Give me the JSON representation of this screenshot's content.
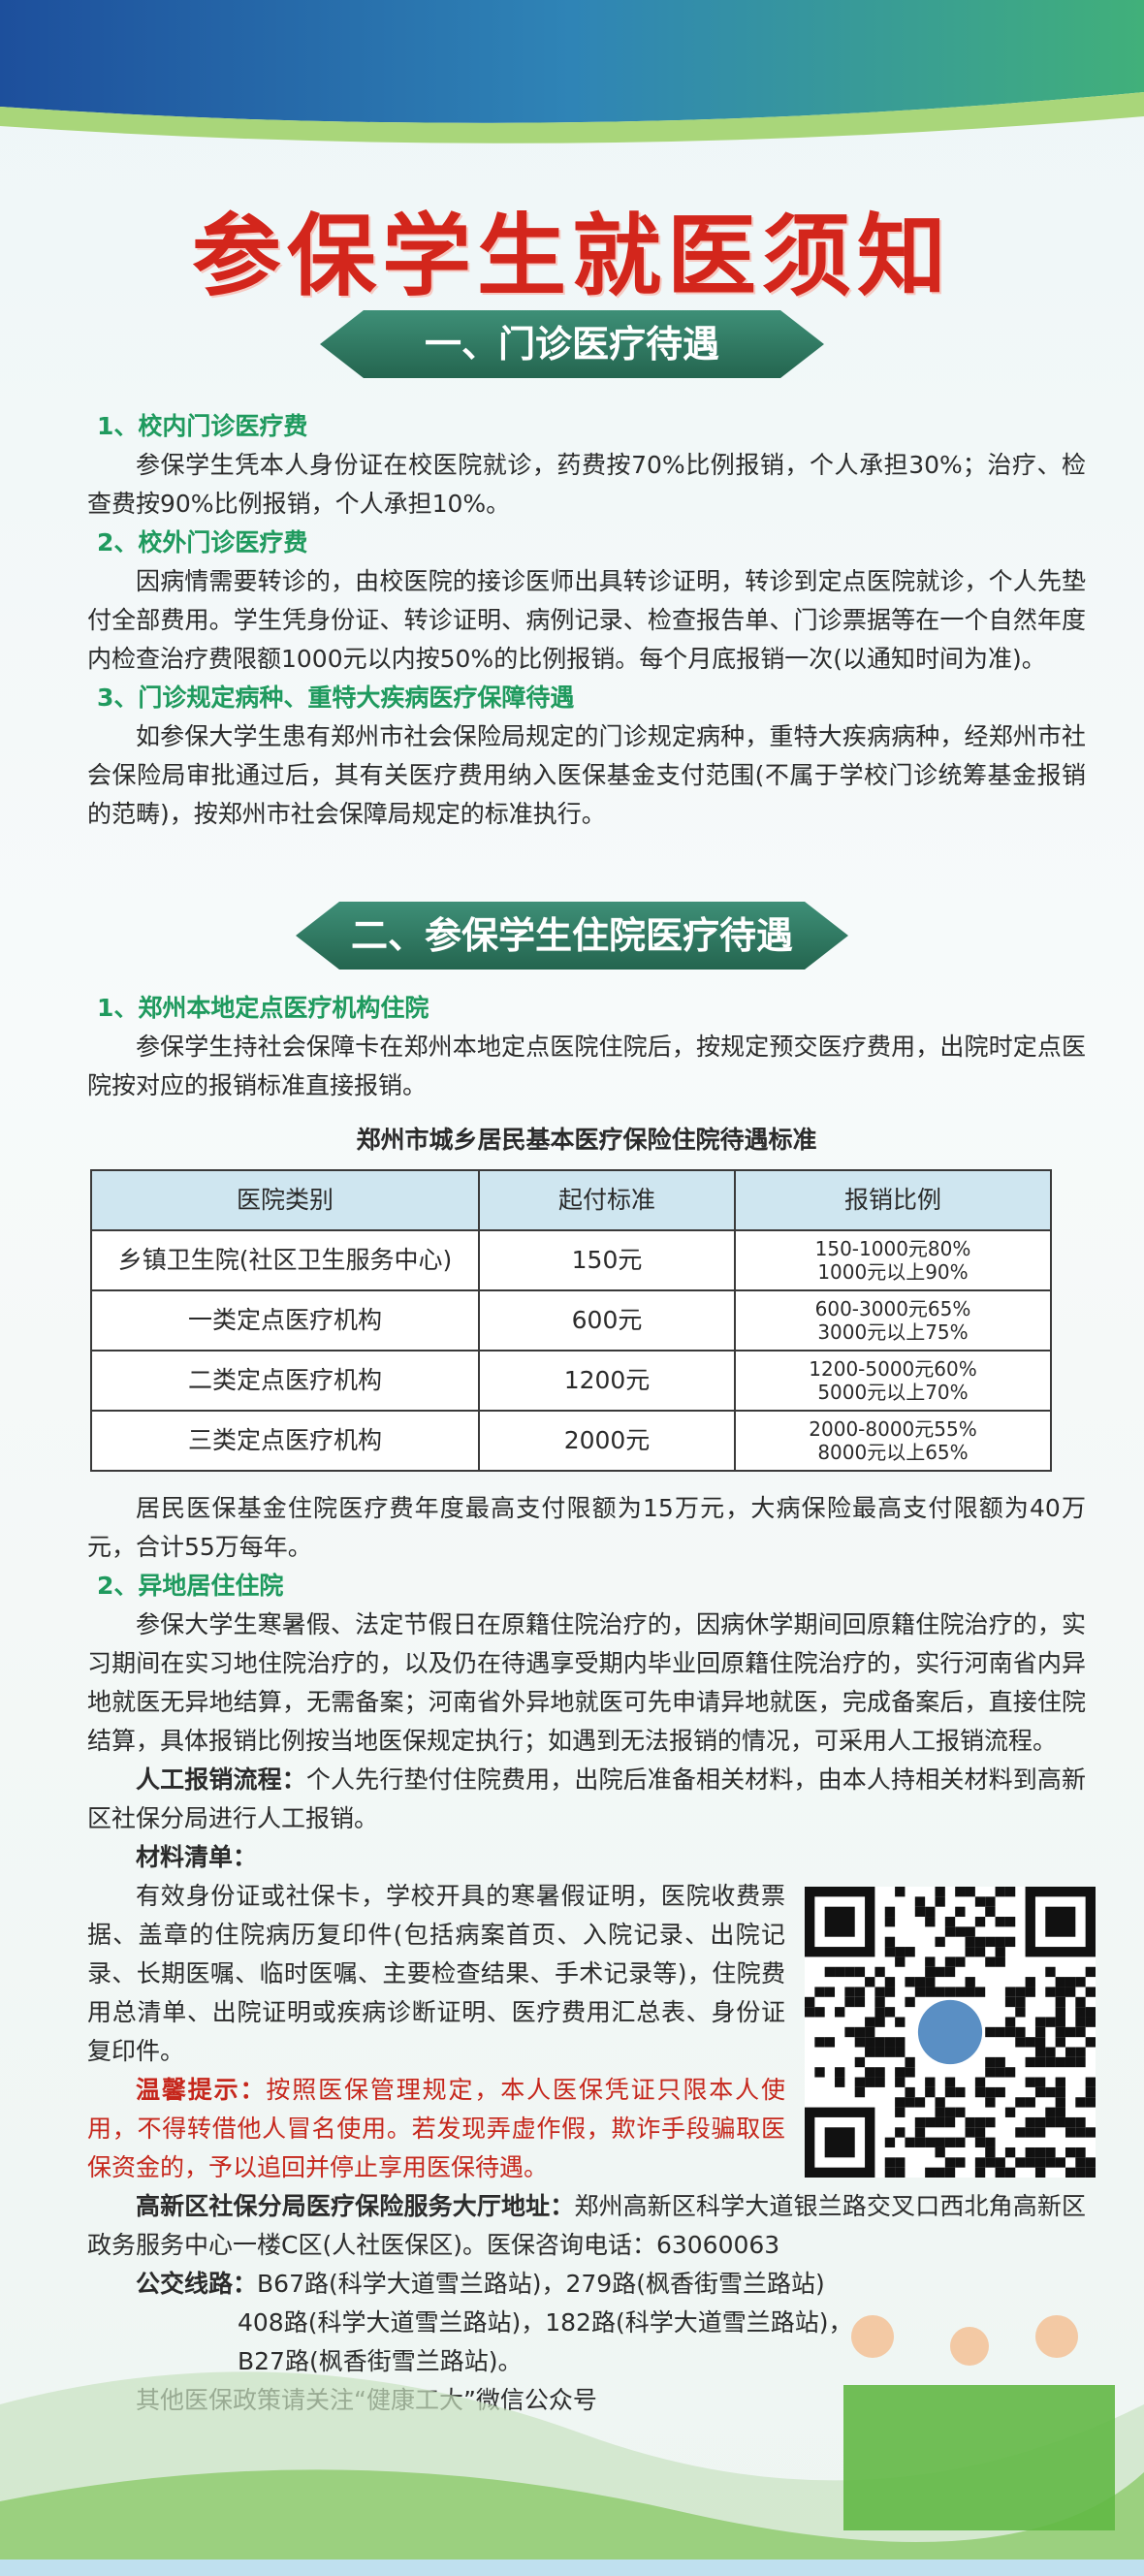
{
  "header": {
    "title": "参保学生就医须知"
  },
  "sections": [
    {
      "heading": "一、门诊医疗待遇",
      "items": [
        {
          "heading": "1、校内门诊医疗费",
          "text": "参保学生凭本人身份证在校医院就诊，药费按70%比例报销，个人承担30%；治疗、检查费按90%比例报销，个人承担10%。"
        },
        {
          "heading": "2、校外门诊医疗费",
          "text": "因病情需要转诊的，由校医院的接诊医师出具转诊证明，转诊到定点医院就诊，个人先垫付全部费用。学生凭身份证、转诊证明、病例记录、检查报告单、门诊票据等在一个自然年度内检查治疗费限额1000元以内按50%的比例报销。每个月底报销一次(以通知时间为准)。"
        },
        {
          "heading": "3、门诊规定病种、重特大疾病医疗保障待遇",
          "text": "如参保大学生患有郑州市社会保险局规定的门诊规定病种，重特大疾病病种，经郑州市社会保险局审批通过后，其有关医疗费用纳入医保基金支付范围(不属于学校门诊统筹基金报销的范畴)，按郑州市社会保障局规定的标准执行。"
        }
      ]
    },
    {
      "heading": "二、参保学生住院医疗待遇",
      "items": [
        {
          "heading": "1、郑州本地定点医疗机构住院",
          "text": "参保学生持社会保障卡在郑州本地定点医院住院后，按规定预交医疗费用，出院时定点医院按对应的报销标准直接报销。"
        },
        {
          "heading": "2、异地居住住院",
          "text": "参保大学生寒暑假、法定节假日在原籍住院治疗的，因病休学期间回原籍住院治疗的，实习期间在实习地住院治疗的，以及仍在待遇享受期内毕业回原籍住院治疗的，实行河南省内异地就医无异地结算，无需备案；河南省外异地就医可先申请异地就医，完成备案后，直接住院结算，具体报销比例按当地医保规定执行；如遇到无法报销的情况，可采用人工报销流程。"
        }
      ],
      "after_table": "居民医保基金住院医疗费年度最高支付限额为15万元，大病保险最高支付限额为40万元，合计55万每年。"
    }
  ],
  "table": {
    "title": "郑州市城乡居民基本医疗保险住院待遇标准",
    "header": [
      "医院类别",
      "起付标准",
      "报销比例"
    ],
    "rows": [
      [
        "乡镇卫生院(社区卫生服务中心)",
        "150元",
        [
          "150-1000元80%",
          "1000元以上90%"
        ]
      ],
      [
        "一类定点医疗机构",
        "600元",
        [
          "600-3000元65%",
          "3000元以上75%"
        ]
      ],
      [
        "二类定点医疗机构",
        "1200元",
        [
          "1200-5000元60%",
          "5000元以上70%"
        ]
      ],
      [
        "三类定点医疗机构",
        "2000元",
        [
          "2000-8000元55%",
          "8000元以上65%"
        ]
      ]
    ]
  },
  "notes": {
    "manual": {
      "label": "人工报销流程：",
      "text": "个人先行垫付住院费用，出院后准备相关材料，由本人持相关材料到高新区社保分局进行人工报销。"
    },
    "materials": {
      "label": "材料清单：",
      "text": "有效身份证或社保卡，学校开具的寒暑假证明，医院收费票据、盖章的住院病历复印件(包括病案首页、入院记录、出院记录、长期医嘱、临时医嘱、主要检查结果、手术记录等)，住院费用总清单、出院证明或疾病诊断证明、医疗费用汇总表、身份证复印件。"
    },
    "tip": {
      "label": "温馨提示：",
      "text": "按照医保管理规定，本人医保凭证只限本人使用，不得转借他人冒名使用。若发现弄虚作假，欺诈手段骗取医保资金的，予以追回并停止享用医保待遇。"
    },
    "address": {
      "label": "高新区社保分局医疗保险服务大厅地址：",
      "text": "郑州高新区科学大道银兰路交叉口西北角高新区政务服务中心一楼C区(人社医保区)。医保咨询电话：63060063"
    },
    "bus": {
      "label": "公交线路：",
      "lines": [
        "B67路(科学大道雪兰路站)，279路(枫香街雪兰路站)",
        "408路(科学大道雪兰路站)，182路(科学大道雪兰路站)，",
        "B27路(枫香街雪兰路站)。"
      ]
    }
  },
  "footer": "其他医保政策请关注“健康工大”微信公众号"
}
